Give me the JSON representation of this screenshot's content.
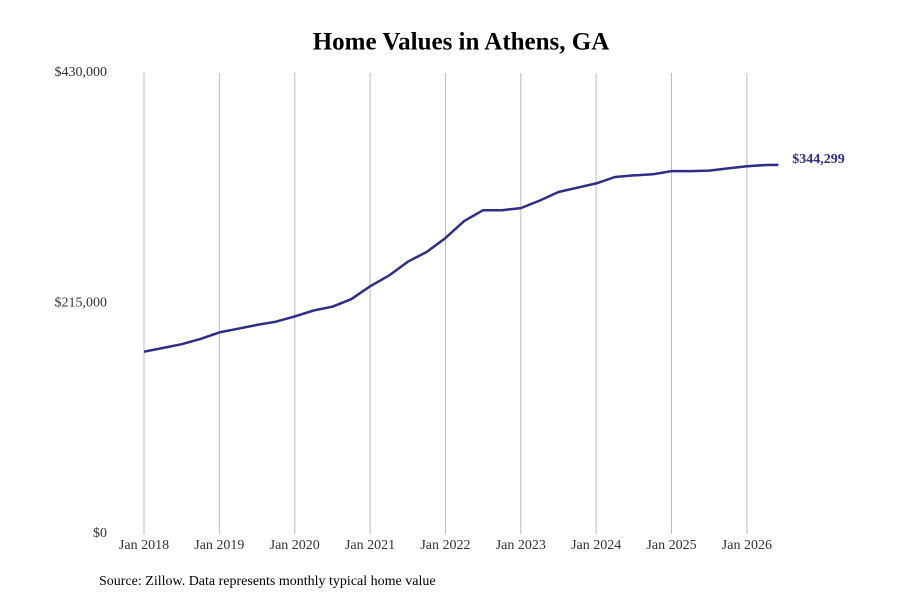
{
  "chart_data": {
    "type": "line",
    "title": "Home Values in Athens, GA",
    "source": "Source: Zillow. Data represents monthly typical home value",
    "x": [
      "2018-01",
      "2018-04",
      "2018-07",
      "2018-10",
      "2019-01",
      "2019-04",
      "2019-07",
      "2019-10",
      "2020-01",
      "2020-04",
      "2020-07",
      "2020-10",
      "2021-01",
      "2021-04",
      "2021-07",
      "2021-10",
      "2022-01",
      "2022-04",
      "2022-07",
      "2022-10",
      "2023-01",
      "2023-04",
      "2023-07",
      "2023-10",
      "2024-01",
      "2024-04",
      "2024-07",
      "2024-10",
      "2025-01",
      "2025-04",
      "2025-07",
      "2025-10",
      "2026-01",
      "2026-04",
      "2026-06"
    ],
    "series": [
      {
        "name": "Typical home value",
        "color": "#2e2d88",
        "values": [
          170000,
          173500,
          177000,
          182000,
          188000,
          191500,
          195000,
          198000,
          203000,
          208500,
          212000,
          219000,
          231000,
          241000,
          254000,
          263000,
          276000,
          292000,
          302000,
          302000,
          304000,
          311000,
          319000,
          323000,
          327000,
          333000,
          334500,
          335500,
          338500,
          338500,
          339000,
          341000,
          343000,
          344200,
          344299
        ],
        "value_labels": [
          null,
          null,
          null,
          null,
          null,
          null,
          null,
          null,
          null,
          null,
          null,
          null,
          null,
          null,
          null,
          null,
          null,
          null,
          null,
          null,
          null,
          null,
          null,
          null,
          null,
          null,
          null,
          null,
          null,
          null,
          null,
          null,
          null,
          null,
          "$344,299"
        ]
      }
    ],
    "ylim": [
      0,
      430000
    ],
    "yticks": [
      {
        "value": 0,
        "label": "$0"
      },
      {
        "value": 215000,
        "label": "$215,000"
      },
      {
        "value": 430000,
        "label": "$430,000"
      }
    ],
    "xticks": [
      {
        "value": "2018-01",
        "label": "Jan 2018"
      },
      {
        "value": "2019-01",
        "label": "Jan 2019"
      },
      {
        "value": "2020-01",
        "label": "Jan 2020"
      },
      {
        "value": "2021-01",
        "label": "Jan 2021"
      },
      {
        "value": "2022-01",
        "label": "Jan 2022"
      },
      {
        "value": "2023-01",
        "label": "Jan 2023"
      },
      {
        "value": "2024-01",
        "label": "Jan 2024"
      },
      {
        "value": "2025-01",
        "label": "Jan 2025"
      },
      {
        "value": "2026-01",
        "label": "Jan 2026"
      }
    ],
    "grid": "x"
  }
}
